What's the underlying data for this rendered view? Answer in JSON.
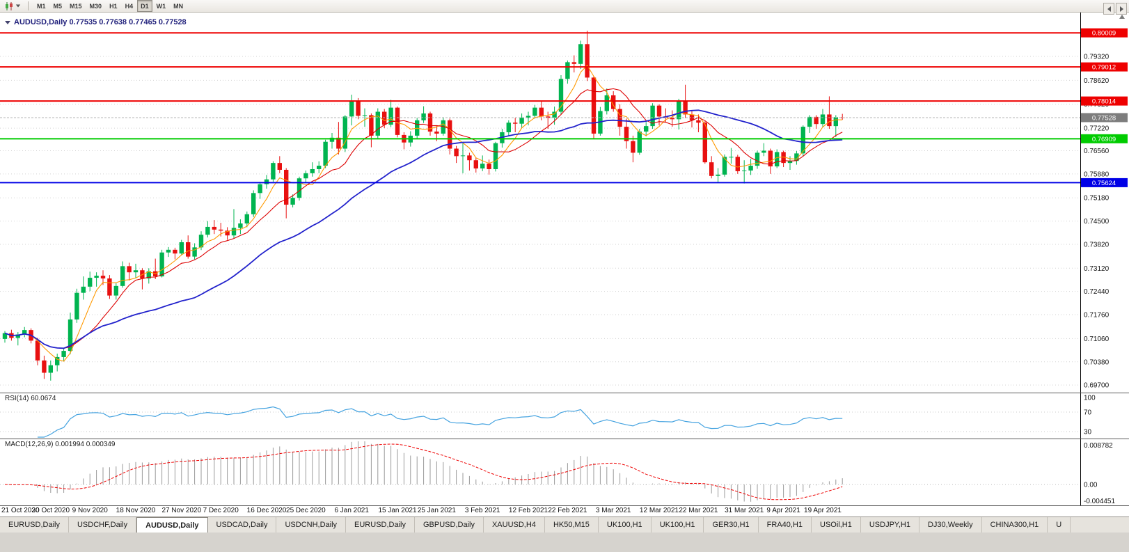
{
  "toolbar": {
    "timeframes": [
      "M1",
      "M5",
      "M15",
      "M30",
      "H1",
      "H4",
      "D1",
      "W1",
      "MN"
    ],
    "active": "D1"
  },
  "chart": {
    "title": "AUDUSD,Daily 0.77535 0.77638 0.77465 0.77528"
  },
  "tabs": {
    "items": [
      "EURUSD,Daily",
      "USDCHF,Daily",
      "AUDUSD,Daily",
      "USDCAD,Daily",
      "USDCNH,Daily",
      "EURUSD,Daily",
      "GBPUSD,Daily",
      "XAUUSD,H4",
      "HK50,M15",
      "UK100,H1",
      "UK100,H1",
      "GER30,H1",
      "FRA40,H1",
      "USOil,H1",
      "USDJPY,H1",
      "DJ30,Weekly",
      "CHINA300,H1",
      "U"
    ],
    "active_index": 2
  },
  "chart_data": {
    "type": "candlestick",
    "symbol": "AUDUSD",
    "timeframe": "Daily",
    "last_ohlc": {
      "open": "0.77535",
      "high": "0.77638",
      "low": "0.77465",
      "close": "0.77528"
    },
    "up_color": "#00b450",
    "down_color": "#e81010",
    "price_range": {
      "min": 0.6952,
      "max": 0.804
    },
    "y_ticks": [
      "0.79320",
      "0.78620",
      "0.77920",
      "0.77220",
      "0.76560",
      "0.75880",
      "0.75180",
      "0.74500",
      "0.73820",
      "0.73120",
      "0.72440",
      "0.71760",
      "0.71060",
      "0.70380",
      "0.69700"
    ],
    "x_ticks": [
      {
        "label": "21 Oct 2020",
        "i": 0
      },
      {
        "label": "30 Oct 2020",
        "i": 7
      },
      {
        "label": "9 Nov 2020",
        "i": 13
      },
      {
        "label": "18 Nov 2020",
        "i": 20
      },
      {
        "label": "27 Nov 2020",
        "i": 27
      },
      {
        "label": "7 Dec 2020",
        "i": 33
      },
      {
        "label": "16 Dec 2020",
        "i": 40
      },
      {
        "label": "25 Dec 2020",
        "i": 46
      },
      {
        "label": "6 Jan 2021",
        "i": 53
      },
      {
        "label": "15 Jan 2021",
        "i": 60
      },
      {
        "label": "25 Jan 2021",
        "i": 66
      },
      {
        "label": "3 Feb 2021",
        "i": 73
      },
      {
        "label": "12 Feb 2021",
        "i": 80
      },
      {
        "label": "22 Feb 2021",
        "i": 86
      },
      {
        "label": "3 Mar 2021",
        "i": 93
      },
      {
        "label": "12 Mar 2021",
        "i": 100
      },
      {
        "label": "22 Mar 2021",
        "i": 106
      },
      {
        "label": "31 Mar 2021",
        "i": 113
      },
      {
        "label": "9 Apr 2021",
        "i": 119
      },
      {
        "label": "19 Apr 2021",
        "i": 125
      }
    ],
    "horizontal_levels": [
      {
        "label": "0.80009",
        "color": "#ee0000",
        "kind": "resistance"
      },
      {
        "label": "0.79012",
        "color": "#ee0000",
        "kind": "resistance"
      },
      {
        "label": "0.78014",
        "color": "#ee0000",
        "kind": "resistance"
      },
      {
        "label": "0.76909",
        "color": "#00cc00",
        "kind": "support"
      },
      {
        "label": "0.75624",
        "color": "#0000e6",
        "kind": "support"
      }
    ],
    "current_price": {
      "label": "0.77528",
      "box_color": "#7d7d7d"
    },
    "moving_averages": [
      {
        "name": "fast-ma",
        "period": 5,
        "color": "#ff9900"
      },
      {
        "name": "medium-ma",
        "period": 10,
        "color": "#dd0000"
      },
      {
        "name": "slow-ma",
        "period": 30,
        "color": "#2222cc"
      }
    ],
    "indicators": {
      "rsi": {
        "label": "RSI(14) 60.0674",
        "period": 14,
        "levels": [
          70,
          30
        ],
        "y_ticks": [
          "100",
          "70",
          "30"
        ],
        "color": "#45a3e0"
      },
      "macd": {
        "label": "MACD(12,26,9) 0.001994 0.000349",
        "fast": 12,
        "slow": 26,
        "signal": 9,
        "y_tick_max": "0.008782",
        "y_tick_zero": "0.00",
        "y_tick_min": "-0.004451",
        "histogram_color": "#9a9a9a",
        "signal_color": "#ee0000"
      }
    },
    "ohlc": [
      [
        0.7105,
        0.7128,
        0.7094,
        0.7122
      ],
      [
        0.7122,
        0.7132,
        0.71,
        0.7108
      ],
      [
        0.7108,
        0.7125,
        0.7086,
        0.7118
      ],
      [
        0.7118,
        0.714,
        0.711,
        0.7131
      ],
      [
        0.7131,
        0.7136,
        0.7092,
        0.71
      ],
      [
        0.71,
        0.7108,
        0.7028,
        0.7042
      ],
      [
        0.7042,
        0.7056,
        0.6988,
        0.7006
      ],
      [
        0.7006,
        0.7042,
        0.6983,
        0.7028
      ],
      [
        0.7028,
        0.7062,
        0.701,
        0.7052
      ],
      [
        0.7052,
        0.7078,
        0.704,
        0.707
      ],
      [
        0.707,
        0.7182,
        0.706,
        0.7162
      ],
      [
        0.7162,
        0.7252,
        0.7152,
        0.724
      ],
      [
        0.724,
        0.7288,
        0.722,
        0.7258
      ],
      [
        0.7258,
        0.7302,
        0.7245,
        0.7284
      ],
      [
        0.7284,
        0.73,
        0.7258,
        0.729
      ],
      [
        0.729,
        0.7306,
        0.7263,
        0.7282
      ],
      [
        0.7282,
        0.7292,
        0.7222,
        0.7232
      ],
      [
        0.7232,
        0.7268,
        0.722,
        0.726
      ],
      [
        0.726,
        0.7332,
        0.7255,
        0.7318
      ],
      [
        0.7318,
        0.7328,
        0.7276,
        0.73
      ],
      [
        0.73,
        0.7325,
        0.7283,
        0.7306
      ],
      [
        0.7306,
        0.7312,
        0.725,
        0.7282
      ],
      [
        0.7282,
        0.7312,
        0.7267,
        0.7303
      ],
      [
        0.7303,
        0.734,
        0.728,
        0.7288
      ],
      [
        0.7288,
        0.7366,
        0.7285,
        0.7358
      ],
      [
        0.7358,
        0.7374,
        0.7345,
        0.7366
      ],
      [
        0.7366,
        0.7372,
        0.7338,
        0.7355
      ],
      [
        0.7355,
        0.7395,
        0.735,
        0.7388
      ],
      [
        0.7388,
        0.7408,
        0.734,
        0.7346
      ],
      [
        0.7346,
        0.7385,
        0.7338,
        0.7373
      ],
      [
        0.7373,
        0.742,
        0.7365,
        0.741
      ],
      [
        0.741,
        0.745,
        0.7402,
        0.7433
      ],
      [
        0.7433,
        0.7453,
        0.7412,
        0.7425
      ],
      [
        0.7425,
        0.7445,
        0.7405,
        0.7422
      ],
      [
        0.7422,
        0.7432,
        0.7395,
        0.7408
      ],
      [
        0.7408,
        0.7485,
        0.74,
        0.743
      ],
      [
        0.743,
        0.7455,
        0.7412,
        0.7443
      ],
      [
        0.7443,
        0.7478,
        0.7432,
        0.747
      ],
      [
        0.747,
        0.754,
        0.7462,
        0.7532
      ],
      [
        0.7532,
        0.7565,
        0.7515,
        0.7558
      ],
      [
        0.7558,
        0.7585,
        0.7545,
        0.7572
      ],
      [
        0.7572,
        0.7625,
        0.7565,
        0.762
      ],
      [
        0.762,
        0.764,
        0.759,
        0.76
      ],
      [
        0.76,
        0.7605,
        0.7458,
        0.7498
      ],
      [
        0.7498,
        0.7528,
        0.749,
        0.7518
      ],
      [
        0.7518,
        0.758,
        0.751,
        0.7575
      ],
      [
        0.7575,
        0.7598,
        0.7562,
        0.759
      ],
      [
        0.759,
        0.7622,
        0.758,
        0.7602
      ],
      [
        0.7602,
        0.7625,
        0.759,
        0.7612
      ],
      [
        0.7612,
        0.7688,
        0.7605,
        0.7682
      ],
      [
        0.7682,
        0.7708,
        0.7662,
        0.7694
      ],
      [
        0.7694,
        0.774,
        0.7645,
        0.7662
      ],
      [
        0.7662,
        0.776,
        0.7652,
        0.7756
      ],
      [
        0.7756,
        0.782,
        0.773,
        0.78
      ],
      [
        0.78,
        0.781,
        0.7748,
        0.7758
      ],
      [
        0.7758,
        0.778,
        0.7726,
        0.776
      ],
      [
        0.776,
        0.7765,
        0.7666,
        0.77
      ],
      [
        0.77,
        0.778,
        0.769,
        0.777
      ],
      [
        0.777,
        0.7778,
        0.7722,
        0.7732
      ],
      [
        0.7732,
        0.7805,
        0.7725,
        0.7782
      ],
      [
        0.7782,
        0.7785,
        0.7695,
        0.7702
      ],
      [
        0.7702,
        0.771,
        0.766,
        0.768
      ],
      [
        0.768,
        0.7713,
        0.7668,
        0.77
      ],
      [
        0.77,
        0.7752,
        0.7692,
        0.7745
      ],
      [
        0.7745,
        0.7786,
        0.7737,
        0.7765
      ],
      [
        0.7765,
        0.777,
        0.77,
        0.7712
      ],
      [
        0.7712,
        0.773,
        0.7684,
        0.7706
      ],
      [
        0.7706,
        0.7754,
        0.77,
        0.7745
      ],
      [
        0.7745,
        0.775,
        0.7645,
        0.7662
      ],
      [
        0.7662,
        0.767,
        0.762,
        0.764
      ],
      [
        0.764,
        0.768,
        0.759,
        0.7642
      ],
      [
        0.7642,
        0.765,
        0.7598,
        0.7628
      ],
      [
        0.7628,
        0.7636,
        0.7592,
        0.7604
      ],
      [
        0.7604,
        0.7642,
        0.7596,
        0.7618
      ],
      [
        0.7618,
        0.763,
        0.7586,
        0.7602
      ],
      [
        0.7602,
        0.7682,
        0.7595,
        0.7678
      ],
      [
        0.7678,
        0.772,
        0.7665,
        0.771
      ],
      [
        0.771,
        0.7745,
        0.77,
        0.7738
      ],
      [
        0.7738,
        0.7752,
        0.771,
        0.7735
      ],
      [
        0.7735,
        0.7765,
        0.7722,
        0.7752
      ],
      [
        0.7752,
        0.777,
        0.773,
        0.7758
      ],
      [
        0.7758,
        0.779,
        0.775,
        0.7782
      ],
      [
        0.7782,
        0.78,
        0.7745,
        0.7756
      ],
      [
        0.7756,
        0.777,
        0.772,
        0.7752
      ],
      [
        0.7752,
        0.7785,
        0.7732,
        0.777
      ],
      [
        0.777,
        0.7877,
        0.7762,
        0.7866
      ],
      [
        0.7866,
        0.792,
        0.7852,
        0.7915
      ],
      [
        0.7915,
        0.7935,
        0.7885,
        0.791
      ],
      [
        0.791,
        0.7978,
        0.7895,
        0.7968
      ],
      [
        0.7968,
        0.8007,
        0.786,
        0.787
      ],
      [
        0.787,
        0.7875,
        0.7692,
        0.7706
      ],
      [
        0.7706,
        0.7784,
        0.77,
        0.7772
      ],
      [
        0.7772,
        0.7838,
        0.7762,
        0.7818
      ],
      [
        0.7818,
        0.783,
        0.777,
        0.7778
      ],
      [
        0.7778,
        0.7792,
        0.77,
        0.7726
      ],
      [
        0.7726,
        0.775,
        0.7662,
        0.7684
      ],
      [
        0.7684,
        0.77,
        0.7622,
        0.765
      ],
      [
        0.765,
        0.772,
        0.7644,
        0.7712
      ],
      [
        0.7712,
        0.774,
        0.7698,
        0.7728
      ],
      [
        0.7728,
        0.7795,
        0.772,
        0.7788
      ],
      [
        0.7788,
        0.7792,
        0.773,
        0.7756
      ],
      [
        0.7756,
        0.778,
        0.774,
        0.7752
      ],
      [
        0.7752,
        0.7774,
        0.7726,
        0.7748
      ],
      [
        0.7748,
        0.7808,
        0.7718,
        0.78
      ],
      [
        0.78,
        0.7849,
        0.7752,
        0.7762
      ],
      [
        0.7762,
        0.7772,
        0.7724,
        0.7745
      ],
      [
        0.7745,
        0.7762,
        0.771,
        0.7738
      ],
      [
        0.7738,
        0.7742,
        0.7618,
        0.7622
      ],
      [
        0.7622,
        0.764,
        0.7575,
        0.7582
      ],
      [
        0.7582,
        0.7605,
        0.7562,
        0.7586
      ],
      [
        0.7586,
        0.7645,
        0.758,
        0.7638
      ],
      [
        0.7638,
        0.7664,
        0.7618,
        0.7638
      ],
      [
        0.7638,
        0.7644,
        0.7588,
        0.7596
      ],
      [
        0.7596,
        0.7628,
        0.756,
        0.7598
      ],
      [
        0.7598,
        0.7632,
        0.7585,
        0.7612
      ],
      [
        0.7612,
        0.7656,
        0.7603,
        0.765
      ],
      [
        0.765,
        0.7678,
        0.764,
        0.7656
      ],
      [
        0.7656,
        0.7662,
        0.7588,
        0.761
      ],
      [
        0.761,
        0.766,
        0.7605,
        0.7652
      ],
      [
        0.7652,
        0.7656,
        0.7608,
        0.762
      ],
      [
        0.762,
        0.764,
        0.76,
        0.7626
      ],
      [
        0.7626,
        0.7655,
        0.7615,
        0.7648
      ],
      [
        0.7648,
        0.773,
        0.764,
        0.7726
      ],
      [
        0.7726,
        0.776,
        0.7708,
        0.7755
      ],
      [
        0.7755,
        0.776,
        0.772,
        0.7734
      ],
      [
        0.7734,
        0.7778,
        0.7726,
        0.7762
      ],
      [
        0.7762,
        0.7815,
        0.772,
        0.7728
      ],
      [
        0.7728,
        0.776,
        0.7696,
        0.7754
      ],
      [
        0.77535,
        0.77638,
        0.77465,
        0.77528
      ]
    ]
  }
}
